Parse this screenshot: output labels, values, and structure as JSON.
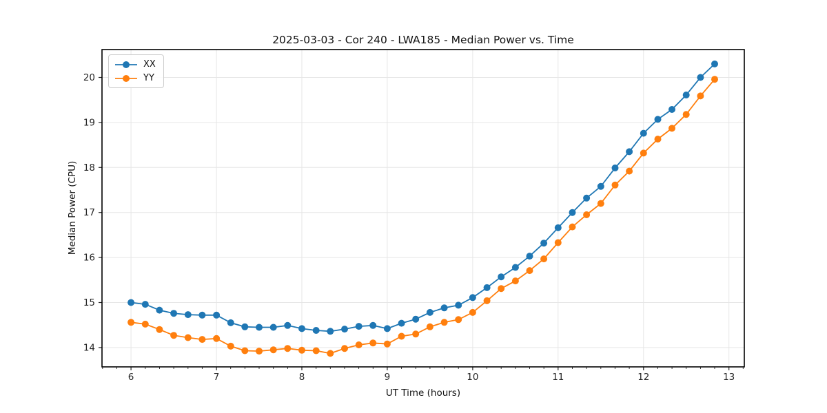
{
  "chart_data": {
    "type": "line",
    "title": "2025-03-03 - Cor 240 - LWA185 - Median Power vs. Time",
    "xlabel": "UT Time (hours)",
    "ylabel": "Median Power (CPU)",
    "xlim": [
      5.66,
      13.18
    ],
    "ylim": [
      13.57,
      20.62
    ],
    "xticks": [
      6,
      7,
      8,
      9,
      10,
      11,
      12,
      13
    ],
    "yticks": [
      14,
      15,
      16,
      17,
      18,
      19,
      20
    ],
    "x_minor_tick_step": 0.1667,
    "grid": true,
    "grid_color": "#e6e6e6",
    "axes_color": "#000000",
    "tick_label_color": "#262626",
    "legend_position": "upper-left",
    "marker": "circle",
    "marker_radius": 5,
    "line_width": 1.8,
    "x": [
      6.0,
      6.167,
      6.333,
      6.5,
      6.667,
      6.833,
      7.0,
      7.167,
      7.333,
      7.5,
      7.667,
      7.833,
      8.0,
      8.167,
      8.333,
      8.5,
      8.667,
      8.833,
      9.0,
      9.167,
      9.333,
      9.5,
      9.667,
      9.833,
      10.0,
      10.167,
      10.333,
      10.5,
      10.667,
      10.833,
      11.0,
      11.167,
      11.333,
      11.5,
      11.667,
      11.833,
      12.0,
      12.167,
      12.333,
      12.5,
      12.667,
      12.833
    ],
    "series": [
      {
        "name": "XX",
        "color": "#1f77b4",
        "values": [
          15.0,
          14.96,
          14.83,
          14.76,
          14.73,
          14.72,
          14.72,
          14.55,
          14.46,
          14.45,
          14.45,
          14.49,
          14.42,
          14.38,
          14.36,
          14.41,
          14.47,
          14.49,
          14.42,
          14.54,
          14.63,
          14.78,
          14.88,
          14.94,
          15.11,
          15.33,
          15.57,
          15.78,
          16.03,
          16.32,
          16.66,
          17.0,
          17.32,
          17.58,
          17.99,
          18.35,
          18.76,
          19.07,
          19.29,
          19.61,
          20.0,
          20.3
        ]
      },
      {
        "name": "YY",
        "color": "#ff7f0e",
        "values": [
          14.56,
          14.52,
          14.4,
          14.27,
          14.22,
          14.18,
          14.2,
          14.03,
          13.93,
          13.92,
          13.95,
          13.98,
          13.94,
          13.93,
          13.87,
          13.98,
          14.06,
          14.1,
          14.08,
          14.25,
          14.3,
          14.46,
          14.56,
          14.62,
          14.78,
          15.04,
          15.31,
          15.48,
          15.71,
          15.97,
          16.33,
          16.68,
          16.95,
          17.2,
          17.61,
          17.92,
          18.32,
          18.63,
          18.87,
          19.18,
          19.59,
          19.96
        ]
      }
    ]
  }
}
